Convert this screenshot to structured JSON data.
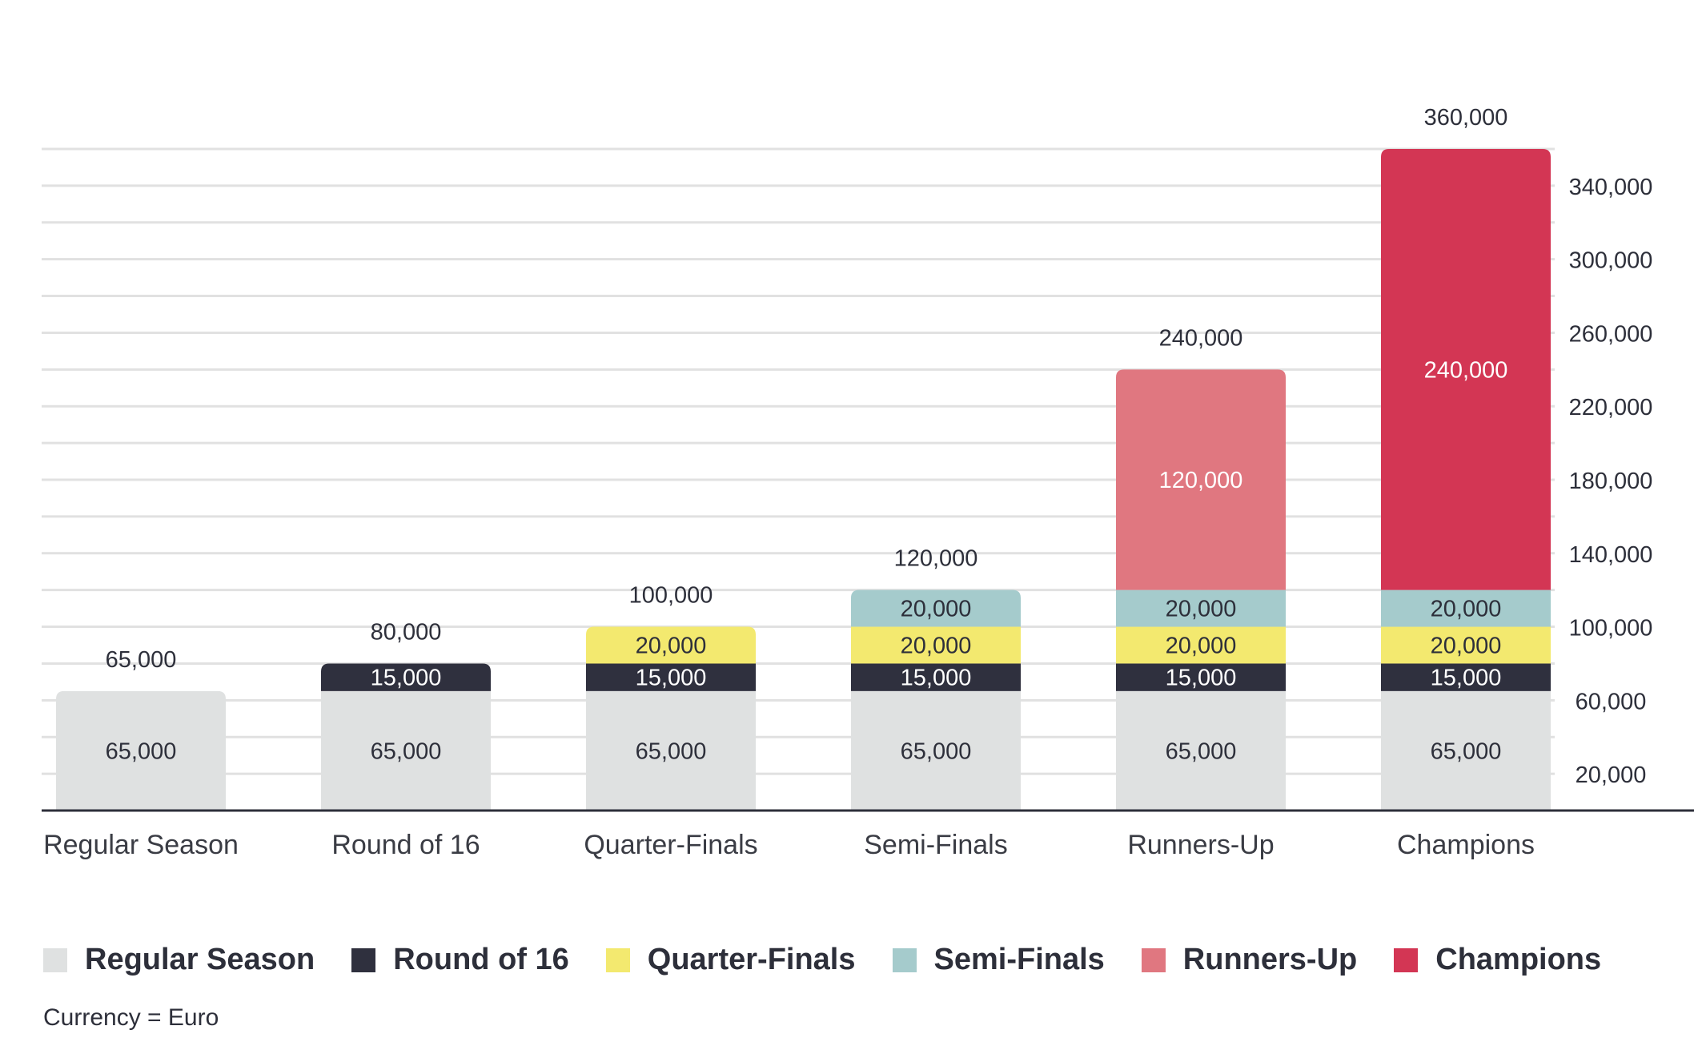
{
  "chart_data": {
    "type": "bar",
    "stacked": true,
    "categories": [
      "Regular Season",
      "Round of 16",
      "Quarter-Finals",
      "Semi-Finals",
      "Runners-Up",
      "Champions"
    ],
    "series": [
      {
        "name": "Regular Season",
        "color": "#dfe1e1",
        "label_color": "#2d2f3a",
        "values": [
          65000,
          65000,
          65000,
          65000,
          65000,
          65000
        ]
      },
      {
        "name": "Round of 16",
        "color": "#2f303e",
        "label_color": "#ffffff",
        "values": [
          0,
          15000,
          15000,
          15000,
          15000,
          15000
        ]
      },
      {
        "name": "Quarter-Finals",
        "color": "#f3e96f",
        "label_color": "#2d2f3a",
        "values": [
          0,
          0,
          20000,
          20000,
          20000,
          20000
        ]
      },
      {
        "name": "Semi-Finals",
        "color": "#a5cbcc",
        "label_color": "#2d2f3a",
        "values": [
          0,
          0,
          0,
          20000,
          20000,
          20000
        ]
      },
      {
        "name": "Runners-Up",
        "color": "#e07780",
        "label_color": "#ffffff",
        "values": [
          0,
          0,
          0,
          0,
          120000,
          0
        ]
      },
      {
        "name": "Champions",
        "color": "#d33654",
        "label_color": "#ffffff",
        "values": [
          0,
          0,
          0,
          0,
          0,
          240000
        ]
      }
    ],
    "segment_labels": [
      [
        "65,000",
        "",
        "",
        "",
        "",
        ""
      ],
      [
        "65,000",
        "15,000",
        "",
        "",
        "",
        ""
      ],
      [
        "65,000",
        "15,000",
        "20,000",
        "",
        "",
        ""
      ],
      [
        "65,000",
        "15,000",
        "20,000",
        "20,000",
        "",
        ""
      ],
      [
        "65,000",
        "15,000",
        "20,000",
        "20,000",
        "120,000",
        ""
      ],
      [
        "65,000",
        "15,000",
        "20,000",
        "20,000",
        "",
        "240,000"
      ]
    ],
    "totals": [
      65000,
      80000,
      100000,
      120000,
      240000,
      360000
    ],
    "total_labels": [
      "65,000",
      "80,000",
      "100,000",
      "120,000",
      "240,000",
      "360,000"
    ],
    "y_ticks": [
      20000,
      60000,
      100000,
      140000,
      180000,
      220000,
      260000,
      300000,
      340000
    ],
    "y_tick_labels": [
      "20,000",
      "60,000",
      "100,000",
      "140,000",
      "180,000",
      "220,000",
      "260,000",
      "300,000",
      "340,000"
    ],
    "grid_step": 20000,
    "ylim": [
      0,
      360000
    ],
    "y_axis_side": "right",
    "grid": true,
    "legend_position": "bottom",
    "title": "",
    "xlabel": "",
    "ylabel": ""
  },
  "note": "Currency = Euro"
}
